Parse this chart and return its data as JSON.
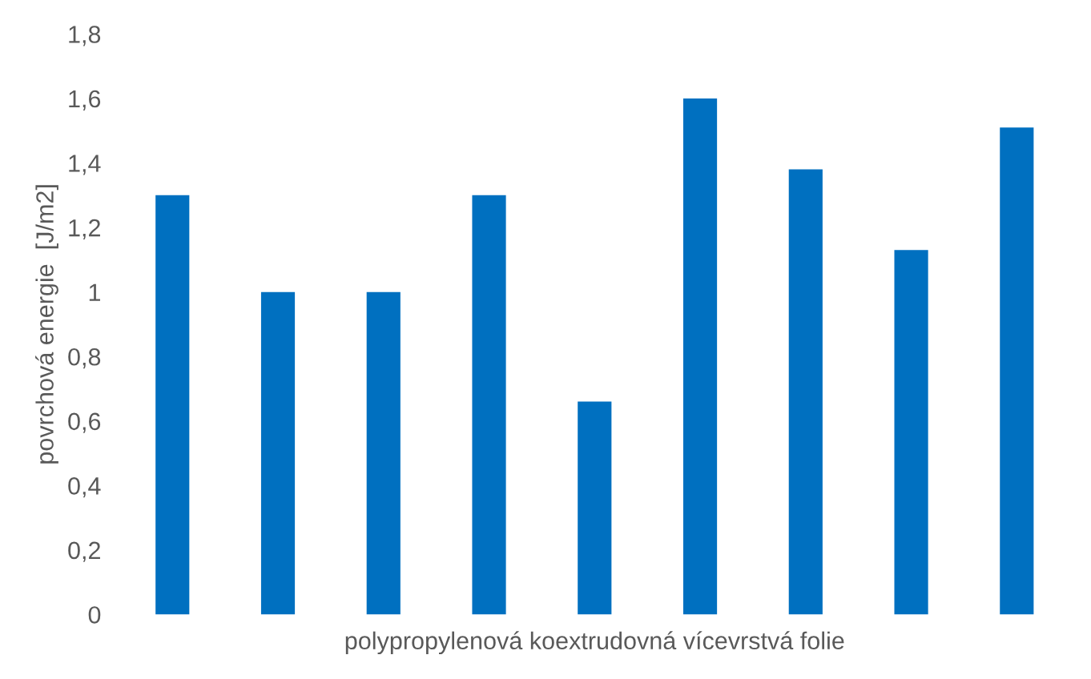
{
  "chart_data": {
    "type": "bar",
    "xlabel": "polypropylenová koextrudovná vícevrstvá folie",
    "ylabel": "povrchová energie  [J/m2]",
    "categories": [
      null,
      null,
      null,
      null,
      null,
      null,
      null,
      null,
      null
    ],
    "values": [
      1.3,
      1.0,
      1.0,
      1.3,
      0.66,
      1.6,
      1.38,
      1.13,
      1.51
    ],
    "color": "#0070c0",
    "ylim": [
      0,
      1.8
    ],
    "yticks": [
      0,
      {
        "value": 0.2,
        "label": "0,2"
      },
      {
        "value": 0.4,
        "label": "0,4"
      },
      {
        "value": 0.6,
        "label": "0,6"
      },
      {
        "value": 0.8,
        "label": "0,8"
      },
      1,
      {
        "value": 1.2,
        "label": "1,2"
      },
      {
        "value": 1.4,
        "label": "1,4"
      },
      {
        "value": 1.6,
        "label": "1,6"
      },
      {
        "value": 1.8,
        "label": "1,8"
      }
    ],
    "grid": false
  }
}
